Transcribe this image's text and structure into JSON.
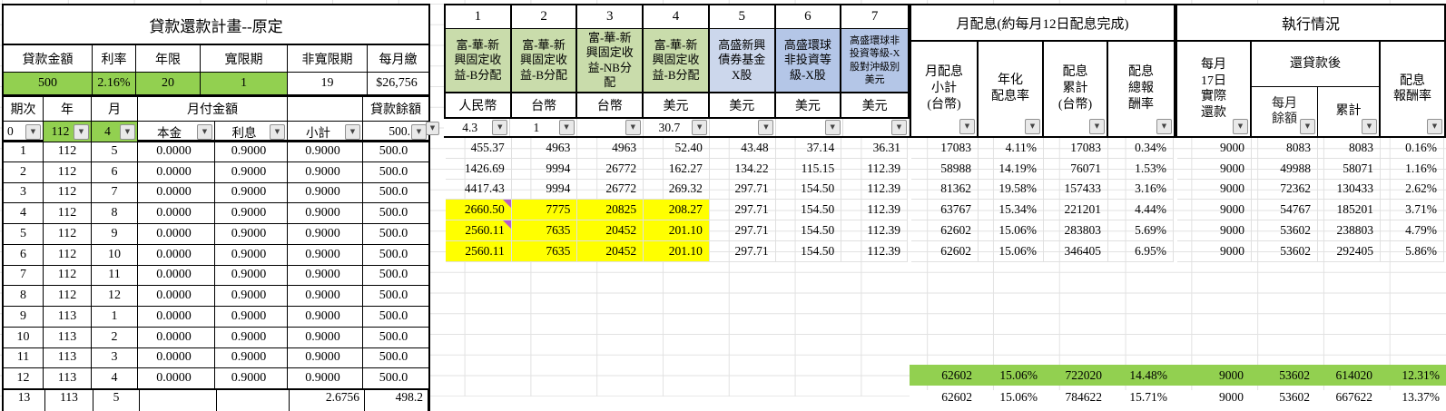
{
  "colors": {
    "green_bright": "#92d050",
    "green_fund": "#c9dcab",
    "blue_light": "#ccd7ec",
    "blue_mid": "#b4c6e7",
    "highlight_yellow": "#ffff00",
    "comment_marker": "#b65cc8"
  },
  "left_table": {
    "title": "貸款還款計畫--原定",
    "param_headers": [
      "貸款金額",
      "利率",
      "年限",
      "寬限期",
      "非寬限期",
      "每月繳"
    ],
    "param_values": [
      "500",
      "2.16%",
      "20",
      "1",
      "19",
      "$26,756"
    ],
    "col_headers": {
      "period": "期次",
      "year": "年",
      "month": "月",
      "payment": "月付金額",
      "empty": "",
      "balance": "貸款餘額"
    },
    "filter_values": [
      "0",
      "112",
      "4",
      "本金",
      "利息",
      "小計",
      "500."
    ],
    "rows": [
      [
        "1",
        "112",
        "5",
        "0.0000",
        "0.9000",
        "0.9000",
        "500.0"
      ],
      [
        "2",
        "112",
        "6",
        "0.0000",
        "0.9000",
        "0.9000",
        "500.0"
      ],
      [
        "3",
        "112",
        "7",
        "0.0000",
        "0.9000",
        "0.9000",
        "500.0"
      ],
      [
        "4",
        "112",
        "8",
        "0.0000",
        "0.9000",
        "0.9000",
        "500.0"
      ],
      [
        "5",
        "112",
        "9",
        "0.0000",
        "0.9000",
        "0.9000",
        "500.0"
      ],
      [
        "6",
        "112",
        "10",
        "0.0000",
        "0.9000",
        "0.9000",
        "500.0"
      ],
      [
        "7",
        "112",
        "11",
        "0.0000",
        "0.9000",
        "0.9000",
        "500.0"
      ],
      [
        "8",
        "112",
        "12",
        "0.0000",
        "0.9000",
        "0.9000",
        "500.0"
      ],
      [
        "9",
        "113",
        "1",
        "0.0000",
        "0.9000",
        "0.9000",
        "500.0"
      ],
      [
        "10",
        "113",
        "2",
        "0.0000",
        "0.9000",
        "0.9000",
        "500.0"
      ],
      [
        "11",
        "113",
        "3",
        "0.0000",
        "0.9000",
        "0.9000",
        "500.0"
      ],
      [
        "12",
        "113",
        "4",
        "0.0000",
        "0.9000",
        "0.9000",
        "500.0"
      ]
    ],
    "partial_row": [
      "13",
      "113",
      "5",
      "",
      "",
      "2.6756",
      "498.2"
    ]
  },
  "funds_table": {
    "col_numbers": [
      "1",
      "2",
      "3",
      "4",
      "5",
      "6",
      "7"
    ],
    "fund_names": [
      "富-華-新\n興固定收\n益-B分配",
      "富-華-新\n興固定收\n益-B分配",
      "富-華-新\n興固定收\n益-NB分\n配",
      "富-華-新\n興固定收\n益-B分配",
      "高盛新興\n債券基金\nX股",
      "高盛環球\n非投資等\n級-X股",
      "高盛環球非\n投資等級-X\n股對沖級別\n美元"
    ],
    "currencies": [
      "人民幣",
      "台幣",
      "台幣",
      "美元",
      "美元",
      "美元",
      "美元"
    ],
    "filter_values": [
      "4.3",
      "1",
      "",
      "30.7",
      "",
      "",
      ""
    ],
    "rows": [
      [
        "455.37",
        "4963",
        "4963",
        "52.40",
        "43.48",
        "37.14",
        "36.31"
      ],
      [
        "1426.69",
        "9994",
        "26772",
        "162.27",
        "134.22",
        "115.15",
        "112.39"
      ],
      [
        "4417.43",
        "9994",
        "26772",
        "269.32",
        "297.71",
        "154.50",
        "112.39"
      ],
      [
        "2660.50",
        "7775",
        "20825",
        "208.27",
        "297.71",
        "154.50",
        "112.39"
      ],
      [
        "2560.11",
        "7635",
        "20452",
        "201.10",
        "297.71",
        "154.50",
        "112.39"
      ],
      [
        "2560.11",
        "7635",
        "20452",
        "201.10",
        "297.71",
        "154.50",
        "112.39"
      ]
    ]
  },
  "dividend_table": {
    "title": "月配息(約每月12日配息完成)",
    "headers": [
      "月配息\n小計\n(台幣)",
      "年化\n配息率",
      "配息\n累計\n(台幣)",
      "配息\n總報\n酬率"
    ],
    "rows": [
      [
        "17083",
        "4.11%",
        "17083",
        "0.34%"
      ],
      [
        "58988",
        "14.19%",
        "76071",
        "1.53%"
      ],
      [
        "81362",
        "19.58%",
        "157433",
        "3.16%"
      ],
      [
        "63767",
        "15.34%",
        "221201",
        "4.44%"
      ],
      [
        "62602",
        "15.06%",
        "283803",
        "5.69%"
      ],
      [
        "62602",
        "15.06%",
        "346405",
        "6.95%"
      ]
    ]
  },
  "exec_table": {
    "title": "執行情況",
    "header_repay": "每月\n17日\n實際\n還款",
    "header_after": "還貸款後",
    "header_monthly_balance": "每月\n餘額",
    "header_cumulative": "累計",
    "header_return": "配息\n報酬率",
    "rows": [
      [
        "9000",
        "8083",
        "8083",
        "0.16%"
      ],
      [
        "9000",
        "49988",
        "58071",
        "1.16%"
      ],
      [
        "9000",
        "72362",
        "130433",
        "2.62%"
      ],
      [
        "9000",
        "54767",
        "185201",
        "3.71%"
      ],
      [
        "9000",
        "53602",
        "238803",
        "4.79%"
      ],
      [
        "9000",
        "53602",
        "292405",
        "5.86%"
      ]
    ]
  },
  "summary_row": [
    "62602",
    "15.06%",
    "722020",
    "14.48%",
    "9000",
    "53602",
    "614020",
    "12.31%"
  ],
  "partial_bottom_row": [
    "62602",
    "15.06%",
    "784622",
    "15.71%",
    "9000",
    "53602",
    "667622",
    "13.37%"
  ]
}
